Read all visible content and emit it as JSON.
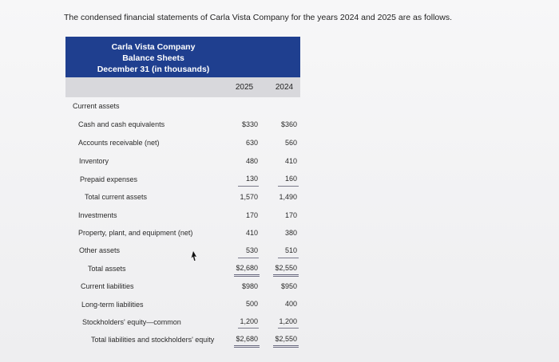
{
  "intro": "The condensed financial statements of Carla Vista Company for the years 2024 and 2025 are as follows.",
  "header": {
    "company": "Carla Vista Company",
    "statement": "Balance Sheets",
    "date": "December 31 (in thousands)"
  },
  "columns": {
    "y2025": "2025",
    "y2024": "2024"
  },
  "section": {
    "current_assets": "Current assets"
  },
  "rows": [
    {
      "label": "Cash and cash equivalents",
      "y2025": "$330",
      "y2024": "$360"
    },
    {
      "label": "Accounts receivable (net)",
      "y2025": "630",
      "y2024": "560"
    },
    {
      "label": "Inventory",
      "y2025": "480",
      "y2024": "410"
    },
    {
      "label": "Prepaid expenses",
      "y2025": "130",
      "y2024": "160"
    },
    {
      "label": "Total current assets",
      "y2025": "1,570",
      "y2024": "1,490"
    },
    {
      "label": "Investments",
      "y2025": "170",
      "y2024": "170"
    },
    {
      "label": "Property, plant, and equipment (net)",
      "y2025": "410",
      "y2024": "380"
    },
    {
      "label": "Other assets",
      "y2025": "530",
      "y2024": "510"
    },
    {
      "label": "Total assets",
      "y2025": "$2,680",
      "y2024": "$2,550"
    },
    {
      "label": "Current liabilities",
      "y2025": "$980",
      "y2024": "$950"
    },
    {
      "label": "Long-term liabilities",
      "y2025": "500",
      "y2024": "400"
    },
    {
      "label": "Stockholders' equity—common",
      "y2025": "1,200",
      "y2024": "1,200"
    },
    {
      "label": "Total liabilities and stockholders' equity",
      "y2025": "$2,680",
      "y2024": "$2,550"
    }
  ]
}
